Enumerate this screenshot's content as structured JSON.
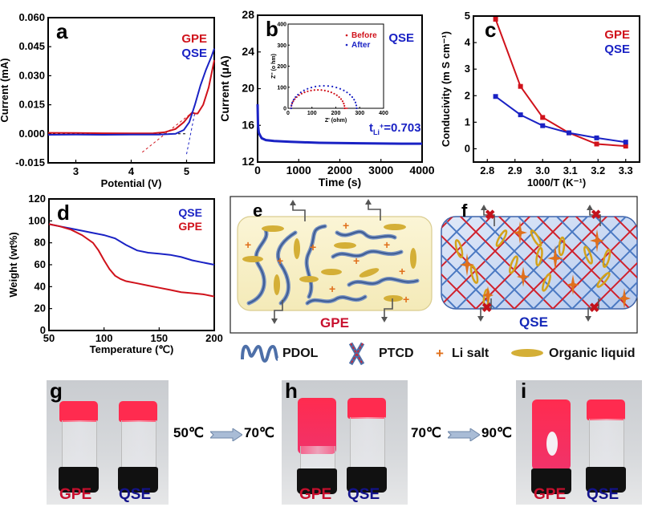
{
  "colors": {
    "gpe": "#d0121b",
    "qse": "#1a22c4",
    "tick": "#000000"
  },
  "chart_data": [
    {
      "id": "a",
      "type": "line",
      "panel_letter": "a",
      "title": "",
      "xlabel": "Potential (V)",
      "ylabel": "Current (mA)",
      "xlim": [
        2.5,
        5.5
      ],
      "ylim": [
        -0.015,
        0.06
      ],
      "xticks": [
        "3",
        "4",
        "5"
      ],
      "xtick_values": [
        3,
        4,
        5
      ],
      "yticks": [
        "-0.015",
        "0.000",
        "0.015",
        "0.030",
        "0.045",
        "0.060"
      ],
      "ytick_values": [
        -0.015,
        0,
        0.015,
        0.03,
        0.045,
        0.06
      ],
      "legend": [
        "GPE",
        "QSE"
      ],
      "legend_position": "top-right",
      "series": [
        {
          "name": "GPE",
          "x": [
            2.5,
            3.0,
            3.5,
            4.0,
            4.4,
            4.6,
            4.8,
            4.95,
            5.05,
            5.1,
            5.15,
            5.2,
            5.3,
            5.4,
            5.5
          ],
          "y": [
            0.0005,
            0.0004,
            0.0003,
            0.0002,
            0.0003,
            0.0008,
            0.0025,
            0.006,
            0.0095,
            0.011,
            0.0105,
            0.0105,
            0.015,
            0.024,
            0.038
          ]
        },
        {
          "name": "QSE",
          "x": [
            2.5,
            3.0,
            3.5,
            4.0,
            4.5,
            4.8,
            4.95,
            5.05,
            5.15,
            5.25,
            5.35,
            5.45,
            5.5
          ],
          "y": [
            -0.0005,
            -0.0004,
            -0.0005,
            -0.0004,
            -0.0004,
            0.0,
            0.002,
            0.006,
            0.015,
            0.025,
            0.033,
            0.04,
            0.044
          ]
        }
      ],
      "annotations": [
        {
          "type": "tangent",
          "series": "GPE",
          "x": [
            4.2,
            5.1
          ],
          "y": [
            -0.0095,
            0.011
          ]
        },
        {
          "type": "tangent",
          "series": "QSE",
          "x": [
            5.0,
            5.15
          ],
          "y": [
            -0.0105,
            0.011
          ]
        },
        {
          "type": "baseline",
          "x": [
            2.5,
            5.0
          ],
          "y": [
            0.0,
            0.0
          ]
        }
      ]
    },
    {
      "id": "b",
      "type": "line",
      "panel_letter": "b",
      "title": "",
      "xlabel": "Time (s)",
      "ylabel": "Current (μA)",
      "xlim": [
        0,
        4000
      ],
      "ylim": [
        12,
        28
      ],
      "xticks": [
        "0",
        "1000",
        "2000",
        "3000",
        "4000"
      ],
      "xtick_values": [
        0,
        1000,
        2000,
        3000,
        4000
      ],
      "yticks": [
        "12",
        "16",
        "20",
        "24",
        "28"
      ],
      "ytick_values": [
        12,
        16,
        20,
        24,
        28
      ],
      "legend": [
        "QSE"
      ],
      "legend_position": "top-right",
      "series": [
        {
          "name": "QSE",
          "x": [
            0,
            10,
            30,
            60,
            100,
            200,
            400,
            800,
            1500,
            2500,
            3500,
            4000
          ],
          "y": [
            18.3,
            16,
            15.2,
            14.9,
            14.6,
            14.4,
            14.3,
            14.2,
            14.1,
            14.05,
            14.0,
            14.0
          ]
        }
      ],
      "annotation_text": {
        "prefix": "t",
        "subscript": "Li",
        "superscript": "+",
        "value": "=0.703"
      },
      "inset": {
        "type": "scatter",
        "xlabel": "Z' (ohm)",
        "ylabel": "Z'' (o hm)",
        "xlim": [
          0,
          400
        ],
        "ylim": [
          0,
          400
        ],
        "xticks": [
          "0",
          "100",
          "200",
          "300",
          "400"
        ],
        "xtick_values": [
          0,
          100,
          200,
          300,
          400
        ],
        "yticks": [
          "0",
          "100",
          "200",
          "300",
          "400"
        ],
        "ytick_values": [
          0,
          100,
          200,
          300,
          400
        ],
        "legend": [
          "Before",
          "After"
        ],
        "legend_position": "top-right",
        "series": [
          {
            "name": "Before",
            "center": 125,
            "radius": 112,
            "x_end": 250
          },
          {
            "name": "After",
            "center": 150,
            "radius": 137,
            "x_end": 290
          }
        ]
      }
    },
    {
      "id": "c",
      "type": "line",
      "panel_letter": "c",
      "title": "",
      "xlabel": "1000/T (K⁻¹)",
      "ylabel": "Conducivity (m S cm⁻¹)",
      "xlim": [
        2.75,
        3.35
      ],
      "ylim": [
        -0.5,
        5
      ],
      "xticks": [
        "2.8",
        "2.9",
        "3.0",
        "3.1",
        "3.2",
        "3.3"
      ],
      "xtick_values": [
        2.8,
        2.9,
        3.0,
        3.1,
        3.2,
        3.3
      ],
      "yticks": [
        "0",
        "1",
        "2",
        "3",
        "4",
        "5"
      ],
      "ytick_values": [
        0,
        1,
        2,
        3,
        4,
        5
      ],
      "legend": [
        "GPE",
        "QSE"
      ],
      "legend_position": "top-right",
      "series": [
        {
          "name": "GPE",
          "x": [
            2.83,
            2.92,
            3.0,
            3.095,
            3.195,
            3.3
          ],
          "y": [
            4.88,
            2.35,
            1.18,
            0.6,
            0.18,
            0.1
          ]
        },
        {
          "name": "QSE",
          "x": [
            2.83,
            2.92,
            3.0,
            3.095,
            3.195,
            3.3
          ],
          "y": [
            1.97,
            1.28,
            0.87,
            0.6,
            0.41,
            0.25
          ]
        }
      ]
    },
    {
      "id": "d",
      "type": "line",
      "panel_letter": "d",
      "title": "",
      "xlabel": "Temperature (℃)",
      "ylabel": "Weight  (wt%)",
      "xlim": [
        50,
        200
      ],
      "ylim": [
        0,
        120
      ],
      "xticks": [
        "50",
        "100",
        "150",
        "200"
      ],
      "xtick_values": [
        50,
        100,
        150,
        200
      ],
      "yticks": [
        "0",
        "20",
        "40",
        "60",
        "80",
        "100",
        "120"
      ],
      "ytick_values": [
        0,
        20,
        40,
        60,
        80,
        100,
        120
      ],
      "legend": [
        "QSE",
        "GPE"
      ],
      "legend_position": "top-right",
      "series": [
        {
          "name": "QSE",
          "x": [
            50,
            60,
            70,
            80,
            90,
            100,
            110,
            120,
            130,
            140,
            150,
            160,
            170,
            180,
            190,
            200
          ],
          "y": [
            97,
            95,
            93,
            91,
            89,
            87,
            84,
            78,
            73,
            71,
            70,
            69,
            67,
            64,
            62,
            60
          ]
        },
        {
          "name": "GPE",
          "x": [
            50,
            60,
            70,
            80,
            90,
            95,
            100,
            105,
            110,
            115,
            120,
            130,
            140,
            150,
            160,
            170,
            180,
            190,
            200
          ],
          "y": [
            97,
            95,
            92,
            87,
            80,
            73,
            64,
            56,
            50,
            47,
            45,
            43,
            41,
            39,
            37,
            35,
            34,
            33,
            31
          ]
        }
      ]
    }
  ],
  "schematic": {
    "e": {
      "letter": "e",
      "label": "GPE"
    },
    "f": {
      "letter": "f",
      "label": "QSE"
    },
    "legend": [
      {
        "icon": "pdol-chain-icon",
        "label": "PDOL"
      },
      {
        "icon": "ptcd-cross-icon",
        "label": "PTCD"
      },
      {
        "icon": "li-salt-star-icon",
        "label": "Li salt"
      },
      {
        "icon": "organic-liquid-ellipse-icon",
        "label": "Organic liquid"
      }
    ]
  },
  "photos": {
    "g": {
      "letter": "g",
      "left_label": "GPE",
      "right_label": "QSE"
    },
    "h": {
      "letter": "h",
      "left_label": "GPE",
      "right_label": "QSE"
    },
    "i": {
      "letter": "i",
      "left_label": "GPE",
      "right_label": "QSE"
    },
    "transitions": [
      {
        "from": "50℃",
        "to": "70℃"
      },
      {
        "from": "70℃",
        "to": "90℃"
      }
    ]
  }
}
